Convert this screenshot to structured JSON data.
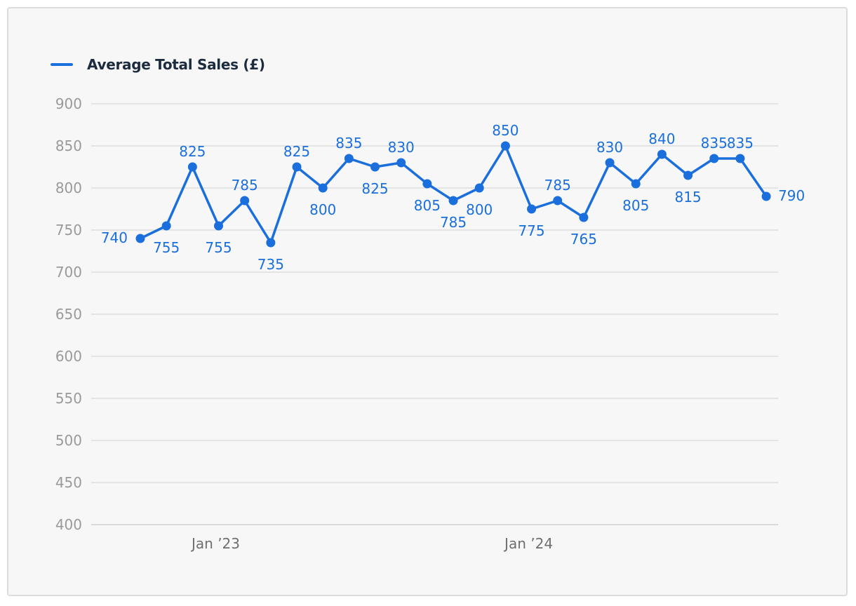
{
  "chart_data": {
    "type": "line",
    "title": "",
    "xlabel": "",
    "ylabel": "",
    "ylim": [
      400,
      900
    ],
    "yticks": [
      "900",
      "850",
      "800",
      "750",
      "700",
      "650",
      "600",
      "550",
      "500",
      "450",
      "400"
    ],
    "xtick_labels": [
      {
        "label": "Jan ’23",
        "index": 3
      },
      {
        "label": "Jan ’24",
        "index": 15
      }
    ],
    "grid": true,
    "legend": "top-left",
    "series": [
      {
        "name": "Average Total Sales (£)",
        "color": "#1a6fdc",
        "values": [
          740,
          755,
          825,
          755,
          785,
          735,
          825,
          800,
          835,
          825,
          830,
          805,
          785,
          800,
          850,
          775,
          785,
          765,
          830,
          805,
          840,
          815,
          835,
          835,
          790
        ]
      }
    ]
  },
  "legend": {
    "label": "Average Total Sales (£)",
    "color": "#1a6fdc"
  }
}
